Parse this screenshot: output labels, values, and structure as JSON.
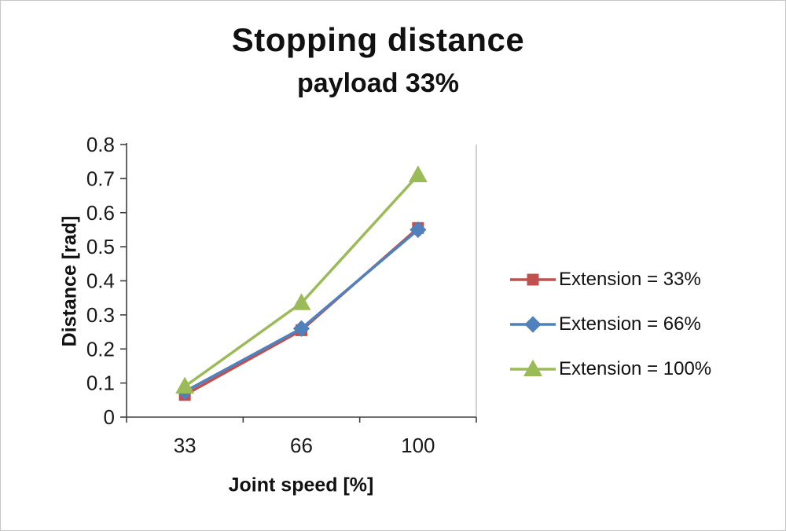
{
  "chart": {
    "title": "Stopping distance",
    "subtitle": "payload 33%",
    "x_axis_title": "Joint speed [%]",
    "y_axis_title": "Distance [rad]"
  },
  "chart_data": {
    "type": "line",
    "title": "Stopping distance",
    "subtitle": "payload 33%",
    "xlabel": "Joint speed [%]",
    "ylabel": "Distance [rad]",
    "categories": [
      "33",
      "66",
      "100"
    ],
    "series": [
      {
        "name": "Extension = 33%",
        "marker": "square",
        "color": "#C0504D",
        "values": [
          0.065,
          0.255,
          0.555
        ]
      },
      {
        "name": "Extension = 66%",
        "marker": "diamond",
        "color": "#4F81BD",
        "values": [
          0.075,
          0.26,
          0.55
        ]
      },
      {
        "name": "Extension = 100%",
        "marker": "triangle",
        "color": "#9BBB59",
        "values": [
          0.09,
          0.335,
          0.71
        ]
      }
    ],
    "ylim": [
      0,
      0.8
    ],
    "yticks": [
      0,
      0.1,
      0.2,
      0.3,
      0.4,
      0.5,
      0.6,
      0.7,
      0.8
    ],
    "grid": false,
    "legend_position": "right"
  }
}
